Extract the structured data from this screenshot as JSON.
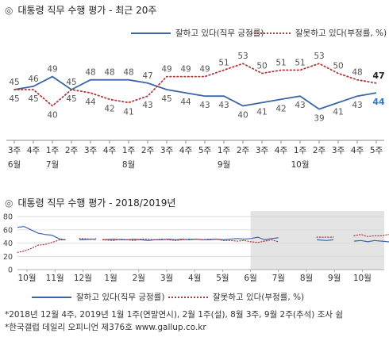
{
  "chart_data": [
    {
      "type": "line",
      "title": "대통령 직무 수행 평가 - 최근 20주",
      "title_mark": "◎",
      "colors": {
        "approve": "#3a66a8",
        "disapprove": "#b03a3a",
        "last_approve": "#2f76c8"
      },
      "categories": [
        "3주",
        "4주",
        "1주",
        "2주",
        "3주",
        "4주",
        "1주",
        "2주",
        "3주",
        "4주",
        "5주",
        "1주",
        "2주",
        "3주",
        "4주",
        "1주",
        "2주",
        "3주",
        "4주",
        "5주"
      ],
      "month_labels": [
        "6월",
        "7월",
        "8월",
        "9월",
        "10월"
      ],
      "month_label_at": [
        0,
        2,
        6,
        11,
        15
      ],
      "series": [
        {
          "name": "잘하고 있다(직무 긍정률)",
          "key": "approve",
          "style": "solid",
          "values": [
            45,
            46,
            49,
            45,
            48,
            48,
            48,
            47,
            45,
            44,
            43,
            43,
            40,
            41,
            42,
            43,
            39,
            41,
            43,
            44
          ],
          "labels": [
            45,
            46,
            49,
            45,
            48,
            48,
            48,
            47,
            45,
            44,
            43,
            43,
            40,
            41,
            42,
            43,
            39,
            41,
            43,
            44
          ],
          "label_pos": [
            "above",
            "above",
            "above",
            "above",
            "above",
            "above",
            "above",
            "above",
            "below",
            "below",
            "below",
            "below",
            "below",
            "below",
            "below",
            "below",
            "below",
            "below",
            "below",
            "below"
          ]
        },
        {
          "name": "잘못하고 있다(부정률, %)",
          "key": "disapprove",
          "style": "dotted",
          "values": [
            45,
            45,
            40,
            45,
            44,
            42,
            41,
            43,
            49,
            49,
            49,
            51,
            53,
            50,
            51,
            51,
            53,
            50,
            48,
            47
          ],
          "labels": [
            45,
            45,
            40,
            45,
            44,
            42,
            41,
            43,
            49,
            49,
            49,
            51,
            53,
            50,
            51,
            51,
            53,
            50,
            48,
            47
          ],
          "label_pos": [
            "below",
            "below",
            "below",
            "below",
            "below",
            "below",
            "below",
            "below",
            "above",
            "above",
            "above",
            "above",
            "above",
            "above",
            "above",
            "above",
            "above",
            "above",
            "above",
            "above"
          ]
        }
      ],
      "last_labels": {
        "approve": "44",
        "disapprove": "47"
      }
    },
    {
      "type": "line",
      "title": "대통령 직무 수행 평가 - 2018/2019년",
      "title_mark": "◎",
      "yticks": [
        0,
        20,
        40,
        60,
        80
      ],
      "ylim": [
        0,
        80
      ],
      "xlabels": [
        "10월",
        "11월",
        "12월",
        "1월",
        "2월",
        "3월",
        "4월",
        "5월",
        "6월",
        "7월",
        "8월",
        "9월",
        "10월"
      ],
      "highlight_from_label": "6월",
      "series": [
        {
          "name": "잘하고 있다(직무 긍정률)",
          "key": "approve",
          "style": "solid",
          "segments": [
            [
              [
                0,
                64
              ],
              [
                0.5,
                65
              ],
              [
                1,
                60
              ],
              [
                1.5,
                55
              ],
              [
                2,
                53
              ],
              [
                2.5,
                52
              ],
              [
                2.8,
                49
              ],
              [
                3.2,
                45
              ],
              [
                3.5,
                45
              ]
            ],
            [
              [
                4.5,
                45
              ],
              [
                5.5,
                46
              ],
              [
                5.7,
                45
              ]
            ],
            [
              [
                6.2,
                45
              ],
              [
                7,
                46
              ],
              [
                7.5,
                45
              ],
              [
                8,
                45
              ],
              [
                8.5,
                46
              ],
              [
                9,
                45
              ],
              [
                9.5,
                44
              ],
              [
                10,
                45
              ],
              [
                10.5,
                45
              ],
              [
                11,
                46
              ],
              [
                11.5,
                45
              ],
              [
                12,
                46
              ],
              [
                12.5,
                45
              ],
              [
                13,
                46
              ],
              [
                13.5,
                45
              ],
              [
                14,
                45
              ],
              [
                14.5,
                46
              ],
              [
                15,
                45
              ],
              [
                15.5,
                46
              ],
              [
                16,
                47
              ],
              [
                16.5,
                46
              ],
              [
                17,
                47
              ],
              [
                17.5,
                49
              ],
              [
                18,
                45
              ],
              [
                18.5,
                47
              ],
              [
                19,
                48
              ]
            ],
            [
              [
                21.8,
                45
              ],
              [
                22.5,
                44
              ],
              [
                23,
                45
              ]
            ],
            [
              [
                24.5,
                43
              ],
              [
                25,
                44
              ],
              [
                25.5,
                42
              ],
              [
                26,
                44
              ],
              [
                26.5,
                43
              ],
              [
                27,
                42
              ],
              [
                27.5,
                41
              ],
              [
                28,
                44
              ]
            ]
          ]
        },
        {
          "name": "잘못하고 있다(부정률, %)",
          "key": "disapprove",
          "style": "dotted",
          "segments": [
            [
              [
                0,
                26
              ],
              [
                0.5,
                28
              ],
              [
                1,
                32
              ],
              [
                1.5,
                37
              ],
              [
                2,
                38
              ],
              [
                2.5,
                41
              ],
              [
                2.8,
                43
              ],
              [
                3.2,
                46
              ],
              [
                3.5,
                45
              ]
            ],
            [
              [
                4.5,
                47
              ],
              [
                5.5,
                46
              ],
              [
                5.7,
                47
              ]
            ],
            [
              [
                6.2,
                45
              ],
              [
                7,
                44
              ],
              [
                7.5,
                46
              ],
              [
                8,
                45
              ],
              [
                8.5,
                44
              ],
              [
                9,
                46
              ],
              [
                9.5,
                46
              ],
              [
                10,
                45
              ],
              [
                10.5,
                46
              ],
              [
                11,
                45
              ],
              [
                11.5,
                44
              ],
              [
                12,
                45
              ],
              [
                12.5,
                46
              ],
              [
                13,
                46
              ],
              [
                13.5,
                45
              ],
              [
                14,
                46
              ],
              [
                14.5,
                46
              ],
              [
                15,
                44
              ],
              [
                15.5,
                44
              ],
              [
                16,
                43
              ],
              [
                16.5,
                44
              ],
              [
                17,
                42
              ],
              [
                17.5,
                41
              ],
              [
                18,
                43
              ],
              [
                18.5,
                45
              ],
              [
                19,
                42
              ]
            ],
            [
              [
                21.8,
                49
              ],
              [
                22.5,
                49
              ],
              [
                23,
                49
              ]
            ],
            [
              [
                24.5,
                51
              ],
              [
                25,
                53
              ],
              [
                25.5,
                50
              ],
              [
                26,
                51
              ],
              [
                26.5,
                51
              ],
              [
                27,
                53
              ],
              [
                27.5,
                50
              ],
              [
                28,
                47
              ]
            ]
          ]
        }
      ]
    }
  ],
  "legend": {
    "approve": "잘하고 있다(직무 긍정률)",
    "disapprove": "잘못하고 있다(부정률, %)"
  },
  "footnotes": [
    "*2018년 12월 4주, 2019년 1월 1주(연말연시), 2월 1주(설), 8월 3주, 9월 2주(추석) 조사 쉼",
    "*한국갤럽 데일리 오피니언 제376호 www.gallup.co.kr"
  ]
}
